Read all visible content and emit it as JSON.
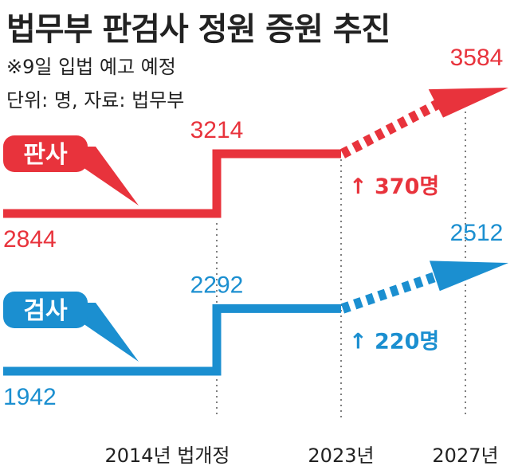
{
  "header": {
    "title": "법무부 판검사 정원 증원 추진",
    "note1": "※9일 입법 예고 예정",
    "note2": "단위: 명, 자료: 법무부"
  },
  "colors": {
    "judge": "#e8333c",
    "prosecutor": "#1b8fd0",
    "text": "#222222"
  },
  "chart_data": {
    "type": "line",
    "x": [
      "",
      "2014년 법개정",
      "2023년",
      "2027년"
    ],
    "x_tick_labels": [
      "2014년 법개정",
      "2023년",
      "2027년"
    ],
    "series": [
      {
        "name": "판사",
        "values": [
          2844,
          3214,
          3214,
          3584
        ],
        "value_labels": [
          "2844",
          "3214",
          "",
          "3584"
        ],
        "increase_label": "↑ 370명",
        "planned_segment": "2023년–2027년 dotted arrow"
      },
      {
        "name": "검사",
        "values": [
          1942,
          2292,
          2292,
          2512
        ],
        "value_labels": [
          "1942",
          "2292",
          "",
          "2512"
        ],
        "increase_label": "↑ 220명",
        "planned_segment": "2023년–2027년 dotted arrow"
      }
    ],
    "grid": "vertical dotted guide lines at each x tick",
    "legend": "callout badges at left"
  }
}
